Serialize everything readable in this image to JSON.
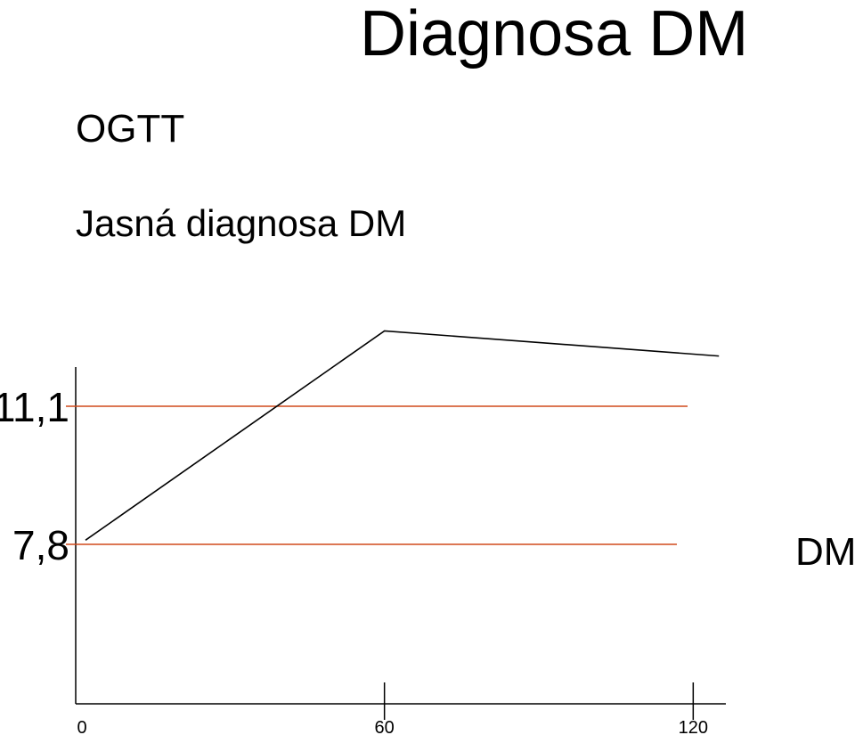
{
  "title": "Diagnosa DM",
  "subtitle": "OGTT",
  "heading": "Jasná diagnosa DM",
  "side_label": "DM",
  "chart_data": {
    "type": "line",
    "x": [
      0,
      60,
      125
    ],
    "series": [
      {
        "values": [
          7.9,
          12.9,
          12.3
        ],
        "color": "#000000"
      }
    ],
    "thresholds": [
      {
        "value": 11.1,
        "label": "11,1",
        "color": "#d04a1c"
      },
      {
        "value": 7.8,
        "label": "7,8",
        "color": "#d04a1c"
      }
    ],
    "xticks": [
      {
        "value": 0,
        "label": "0"
      },
      {
        "value": 60,
        "label": "60"
      },
      {
        "value": 120,
        "label": "120"
      }
    ],
    "xlim": [
      0,
      135
    ],
    "ylim": [
      5,
      13.5
    ],
    "grid": false,
    "legend": "none"
  }
}
